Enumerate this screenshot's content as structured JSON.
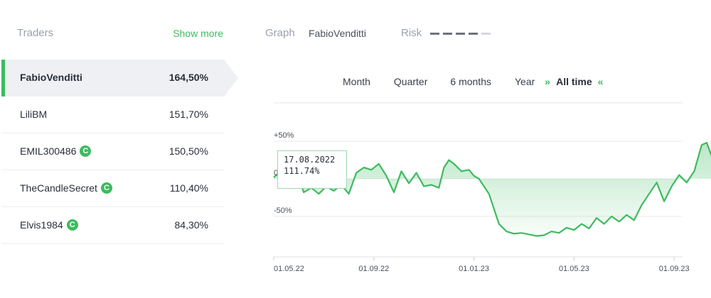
{
  "traders_panel": {
    "title": "Traders",
    "show_more": "Show more",
    "items": [
      {
        "name": "FabioVenditti",
        "value": "164,50%",
        "active": true,
        "verified": false
      },
      {
        "name": "LiliBM",
        "value": "151,70%",
        "active": false,
        "verified": false
      },
      {
        "name": "EMIL300486",
        "value": "150,50%",
        "active": false,
        "verified": true
      },
      {
        "name": "TheCandleSecret",
        "value": "110,40%",
        "active": false,
        "verified": true
      },
      {
        "name": "Elvis1984",
        "value": "84,30%",
        "active": false,
        "verified": true
      }
    ]
  },
  "graph_header": {
    "title": "Graph",
    "trader": "FabioVenditti",
    "risk_label": "Risk",
    "risk_level": 4,
    "risk_max": 5
  },
  "periods": {
    "items": [
      "Month",
      "Quarter",
      "6 months",
      "Year"
    ],
    "active": "All time",
    "arrow_left": "»",
    "arrow_right": "«"
  },
  "badge_glyph": "C",
  "colors": {
    "accent": "#3dbb5f",
    "text": "#2a2f3a",
    "muted": "#9aa1ad"
  },
  "tooltip": {
    "date": "17.08.2022",
    "value": "111.74%"
  },
  "chart_data": {
    "type": "area",
    "y_ticks": [
      {
        "value": 50,
        "label": "+50%"
      },
      {
        "value": 0,
        "label": "0"
      },
      {
        "value": -50,
        "label": "-50%"
      }
    ],
    "x_ticks": [
      {
        "t": 0.0,
        "label": "01.05.22"
      },
      {
        "t": 4.0,
        "label": "01.09.22"
      },
      {
        "t": 8.0,
        "label": "01.01.23"
      },
      {
        "t": 12.0,
        "label": "01.05.23"
      },
      {
        "t": 16.0,
        "label": "01.09.23"
      }
    ],
    "x_range": [
      0,
      18.6
    ],
    "y_range": [
      -100,
      100
    ],
    "grid": true,
    "series": [
      {
        "values": [
          [
            0.0,
            2
          ],
          [
            0.3,
            10
          ],
          [
            0.6,
            5
          ],
          [
            0.9,
            12
          ],
          [
            1.2,
            -18
          ],
          [
            1.5,
            -12
          ],
          [
            1.8,
            -20
          ],
          [
            2.1,
            -10
          ],
          [
            2.4,
            -16
          ],
          [
            2.7,
            -8
          ],
          [
            3.0,
            -20
          ],
          [
            3.3,
            8
          ],
          [
            3.6,
            15
          ],
          [
            3.9,
            12
          ],
          [
            4.2,
            20
          ],
          [
            4.5,
            4
          ],
          [
            4.8,
            -18
          ],
          [
            5.1,
            10
          ],
          [
            5.4,
            -6
          ],
          [
            5.7,
            8
          ],
          [
            6.0,
            -10
          ],
          [
            6.3,
            -8
          ],
          [
            6.6,
            -12
          ],
          [
            6.8,
            15
          ],
          [
            7.0,
            25
          ],
          [
            7.2,
            20
          ],
          [
            7.5,
            10
          ],
          [
            7.8,
            12
          ],
          [
            8.0,
            4
          ],
          [
            8.2,
            0
          ],
          [
            8.4,
            -10
          ],
          [
            8.6,
            -20
          ],
          [
            8.8,
            -40
          ],
          [
            9.0,
            -60
          ],
          [
            9.3,
            -70
          ],
          [
            9.6,
            -73
          ],
          [
            9.9,
            -72
          ],
          [
            10.2,
            -74
          ],
          [
            10.5,
            -76
          ],
          [
            10.8,
            -75
          ],
          [
            11.1,
            -70
          ],
          [
            11.4,
            -72
          ],
          [
            11.7,
            -65
          ],
          [
            12.0,
            -68
          ],
          [
            12.3,
            -60
          ],
          [
            12.6,
            -66
          ],
          [
            12.9,
            -52
          ],
          [
            13.2,
            -60
          ],
          [
            13.5,
            -50
          ],
          [
            13.8,
            -57
          ],
          [
            14.1,
            -48
          ],
          [
            14.4,
            -55
          ],
          [
            14.7,
            -35
          ],
          [
            15.0,
            -20
          ],
          [
            15.3,
            -5
          ],
          [
            15.6,
            -30
          ],
          [
            15.9,
            -10
          ],
          [
            16.2,
            5
          ],
          [
            16.5,
            -5
          ],
          [
            16.8,
            10
          ],
          [
            17.1,
            45
          ],
          [
            17.3,
            48
          ],
          [
            17.5,
            30
          ],
          [
            17.7,
            38
          ],
          [
            17.9,
            10
          ],
          [
            18.1,
            25
          ],
          [
            18.3,
            -10
          ],
          [
            18.5,
            20
          ]
        ]
      }
    ]
  }
}
